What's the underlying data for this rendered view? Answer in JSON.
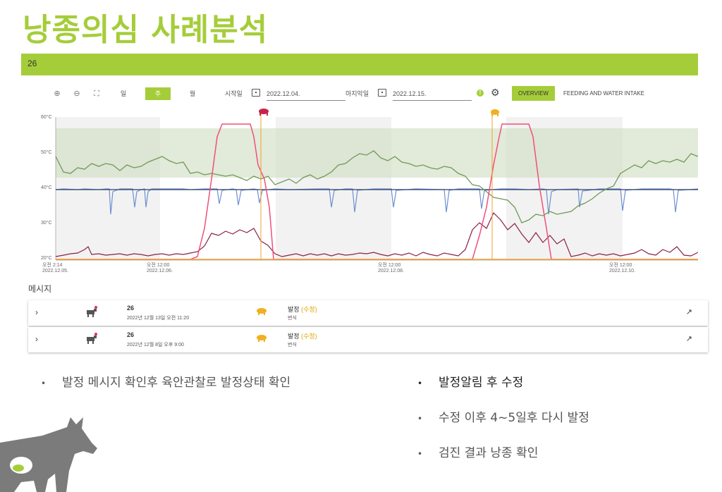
{
  "slide": {
    "title": "낭종의심 사례분석",
    "bullets_left": [
      "발정 메시지 확인후 육안관찰로 발정상태 확인"
    ],
    "bullets_right": [
      "발정알림 후 수정",
      "수정 이후 4~5일후 다시 발정",
      "검진 결과 낭종 확인"
    ]
  },
  "app": {
    "header_id": "26",
    "toolbar": {
      "zoom_in_icon": "zoom-in-icon",
      "zoom_out_icon": "zoom-out-icon",
      "fit_icon": "fit-screen-icon",
      "period_day": "일",
      "period_week": "주",
      "period_month": "월",
      "start_label": "시작일",
      "start_date": "2022.12.04.",
      "end_label": "마지막일",
      "end_date": "2022.12.15.",
      "tab_overview": "OVERVIEW",
      "tab_feeding": "FEEDING AND WATER INTAKE"
    },
    "messages_title": "메시지",
    "messages": [
      {
        "id": "26",
        "date": "2022년 12월 13일 오전 11:20",
        "type": "발정",
        "status": "(수정)",
        "sub": "번식"
      },
      {
        "id": "26",
        "date": "2022년 12월 8일 오후 9:00",
        "type": "발정",
        "status": "(수정)",
        "sub": "번식"
      }
    ]
  },
  "colors": {
    "accent": "#a5cd39",
    "pink_line": "#f0507a",
    "green_line": "#6f9a55",
    "blue_line": "#6e90d0",
    "maroon_line": "#8a1f4a",
    "orange_line": "#f0a030"
  },
  "chart_data": {
    "type": "line",
    "y_unit": "°C",
    "ylim": [
      20,
      60
    ],
    "y_ticks": [
      "60°C",
      "50°C",
      "40°C",
      "30°C",
      "20°C"
    ],
    "x_ticks": [
      {
        "time": "오전 2:14",
        "date": "2022.12.05."
      },
      {
        "time": "오전 12:00",
        "date": "2022.12.06."
      },
      {
        "time": "오전 12:00",
        "date": "2022.12.08."
      },
      {
        "time": "오전 12:00",
        "date": "2022.12.10."
      }
    ],
    "markers": [
      "estrus-red-icon",
      "estrus-yellow-icon"
    ]
  }
}
